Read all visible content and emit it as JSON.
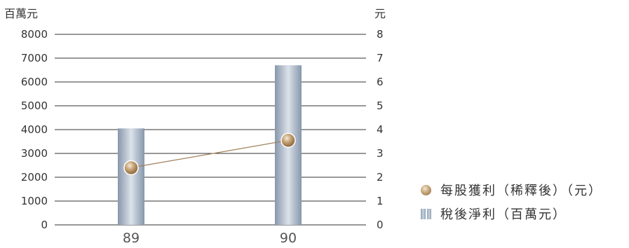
{
  "chart_data": {
    "type": "bar",
    "categories": [
      "89",
      "90"
    ],
    "series": [
      {
        "name": "稅後淨利（百萬元）",
        "type": "bar",
        "axis": "left",
        "values": [
          4050,
          6700
        ]
      },
      {
        "name": "每股獲利（稀釋後）（元）",
        "type": "line",
        "axis": "right",
        "values": [
          2.4,
          3.55
        ]
      }
    ],
    "y_left": {
      "unit": "百萬元",
      "ticks": [
        "0",
        "1000",
        "2000",
        "3000",
        "4000",
        "5000",
        "6000",
        "7000",
        "8000"
      ],
      "ylim": [
        0,
        8000
      ]
    },
    "y_right": {
      "unit": "元",
      "ticks": [
        "0",
        "1",
        "2",
        "3",
        "4",
        "5",
        "6",
        "7",
        "8"
      ],
      "ylim": [
        0,
        8
      ]
    },
    "grid": true,
    "legend_position": "right",
    "colors": {
      "bar": "#a9b8c8",
      "line": "#a0805a",
      "marker": "#b08a5a",
      "grid": "#333333"
    }
  },
  "legend": {
    "items": [
      {
        "label": "每股獲利（稀釋後）（元）",
        "icon": "sphere-marker-icon"
      },
      {
        "label": "稅後淨利（百萬元）",
        "icon": "bar-swatch-icon"
      }
    ]
  }
}
